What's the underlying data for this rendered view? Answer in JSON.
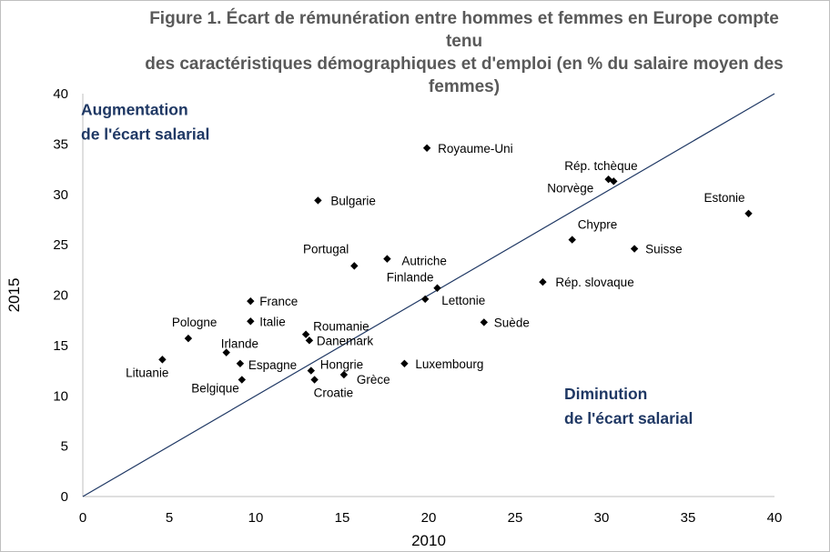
{
  "chart_data": {
    "type": "scatter",
    "title_lines": [
      "Figure 1. Écart de rémunération entre hommes et femmes en Europe compte tenu",
      "des caractéristiques démographiques et d'emploi (en % du salaire moyen des",
      "femmes)"
    ],
    "xlabel": "2010",
    "ylabel": "2015",
    "xlim": [
      0,
      40
    ],
    "ylim": [
      0,
      40
    ],
    "x_ticks": [
      0,
      5,
      10,
      15,
      20,
      25,
      30,
      35,
      40
    ],
    "y_ticks": [
      0,
      5,
      10,
      15,
      20,
      25,
      30,
      35,
      40
    ],
    "grid": false,
    "reference_line": {
      "from": [
        0,
        0
      ],
      "to": [
        40,
        40
      ]
    },
    "annotations": [
      {
        "lines": [
          "Augmentation",
          "de l'écart salarial"
        ],
        "x": 2,
        "y": 37.5
      },
      {
        "lines": [
          "Diminution",
          "de l'écart salarial"
        ],
        "x": 28,
        "y": 8.2
      }
    ],
    "colors": {
      "marker": "#000000",
      "line": "#1f3864",
      "annotation": "#1f3864",
      "axis_text": "#000000"
    },
    "points": [
      {
        "label": "Royaume-Uni",
        "x": 19.9,
        "y": 34.6
      },
      {
        "label": "Rép. tchèque",
        "x": 30.4,
        "y": 31.5
      },
      {
        "label": "Norvège",
        "x": 30.7,
        "y": 31.3
      },
      {
        "label": "Estonie",
        "x": 38.5,
        "y": 28.1
      },
      {
        "label": "Bulgarie",
        "x": 13.6,
        "y": 29.4
      },
      {
        "label": "Chypre",
        "x": 28.3,
        "y": 25.5
      },
      {
        "label": "Suisse",
        "x": 31.9,
        "y": 24.6
      },
      {
        "label": "Autriche",
        "x": 17.6,
        "y": 23.6
      },
      {
        "label": "Portugal",
        "x": 15.7,
        "y": 22.9
      },
      {
        "label": "Rép. slovaque",
        "x": 26.6,
        "y": 21.3
      },
      {
        "label": "Finlande",
        "x": 20.5,
        "y": 20.7
      },
      {
        "label": "Lettonie",
        "x": 19.8,
        "y": 19.6
      },
      {
        "label": "France",
        "x": 9.7,
        "y": 19.4
      },
      {
        "label": "Italie",
        "x": 9.7,
        "y": 17.4
      },
      {
        "label": "Suède",
        "x": 23.2,
        "y": 17.3
      },
      {
        "label": "Roumanie",
        "x": 12.9,
        "y": 16.1
      },
      {
        "label": "Pologne",
        "x": 6.1,
        "y": 15.7
      },
      {
        "label": "Danemark",
        "x": 13.1,
        "y": 15.5
      },
      {
        "label": "Irlande",
        "x": 8.3,
        "y": 14.3
      },
      {
        "label": "Lituanie",
        "x": 4.6,
        "y": 13.6
      },
      {
        "label": "Espagne",
        "x": 9.1,
        "y": 13.2
      },
      {
        "label": "Luxembourg",
        "x": 18.6,
        "y": 13.2
      },
      {
        "label": "Hongrie",
        "x": 13.2,
        "y": 12.5
      },
      {
        "label": "Grèce",
        "x": 15.1,
        "y": 12.1
      },
      {
        "label": "Belgique",
        "x": 9.2,
        "y": 11.6
      },
      {
        "label": "Croatie",
        "x": 13.4,
        "y": 11.6
      }
    ]
  }
}
